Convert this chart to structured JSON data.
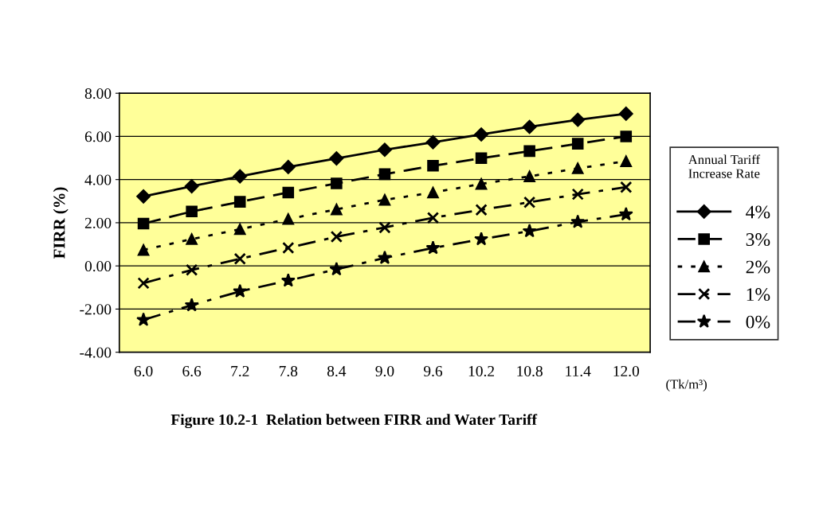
{
  "chart_data": {
    "type": "line",
    "title": "Figure 10.2-1  Relation between FIRR and Water Tariff",
    "ylabel": "FIRR (%)",
    "legend_title": "Annual Tariff\nIncrease Rate",
    "annotations": [
      "(Tk/m³)"
    ],
    "categories": [
      "6.0",
      "6.6",
      "7.2",
      "7.8",
      "8.4",
      "9.0",
      "9.6",
      "10.2",
      "10.8",
      "11.4",
      "12.0"
    ],
    "series": [
      {
        "name": "4%",
        "color": "#000000",
        "marker": "diamond",
        "line_style": "solid",
        "values": [
          3.22,
          3.69,
          4.15,
          4.58,
          4.98,
          5.38,
          5.73,
          6.09,
          6.44,
          6.77,
          7.05
        ]
      },
      {
        "name": "3%",
        "color": "#000000",
        "marker": "square",
        "line_style": "dashed",
        "values": [
          1.96,
          2.52,
          2.97,
          3.4,
          3.82,
          4.25,
          4.64,
          4.99,
          5.32,
          5.66,
          6.0
        ]
      },
      {
        "name": "2%",
        "color": "#000000",
        "marker": "triangle",
        "line_style": "dotted",
        "values": [
          0.74,
          1.24,
          1.7,
          2.17,
          2.62,
          3.06,
          3.4,
          3.8,
          4.15,
          4.52,
          4.85
        ]
      },
      {
        "name": "1%",
        "color": "#000000",
        "marker": "cross",
        "line_style": "dashdot",
        "values": [
          -0.8,
          -0.19,
          0.33,
          0.84,
          1.35,
          1.78,
          2.23,
          2.6,
          2.95,
          3.32,
          3.65
        ]
      },
      {
        "name": "0%",
        "color": "#000000",
        "marker": "star",
        "line_style": "dashdot",
        "values": [
          -2.5,
          -1.82,
          -1.18,
          -0.68,
          -0.16,
          0.37,
          0.83,
          1.24,
          1.61,
          2.04,
          2.39
        ]
      }
    ],
    "ylim": [
      -4,
      8
    ],
    "yticks": [
      {
        "value": -4,
        "label": "-4.00"
      },
      {
        "value": -2,
        "label": "-2.00"
      },
      {
        "value": 0,
        "label": "0.00"
      },
      {
        "value": 2,
        "label": "2.00"
      },
      {
        "value": 4,
        "label": "4.00"
      },
      {
        "value": 6,
        "label": "6.00"
      },
      {
        "value": 8,
        "label": "8.00"
      }
    ],
    "grid": "y",
    "legend": "right"
  }
}
